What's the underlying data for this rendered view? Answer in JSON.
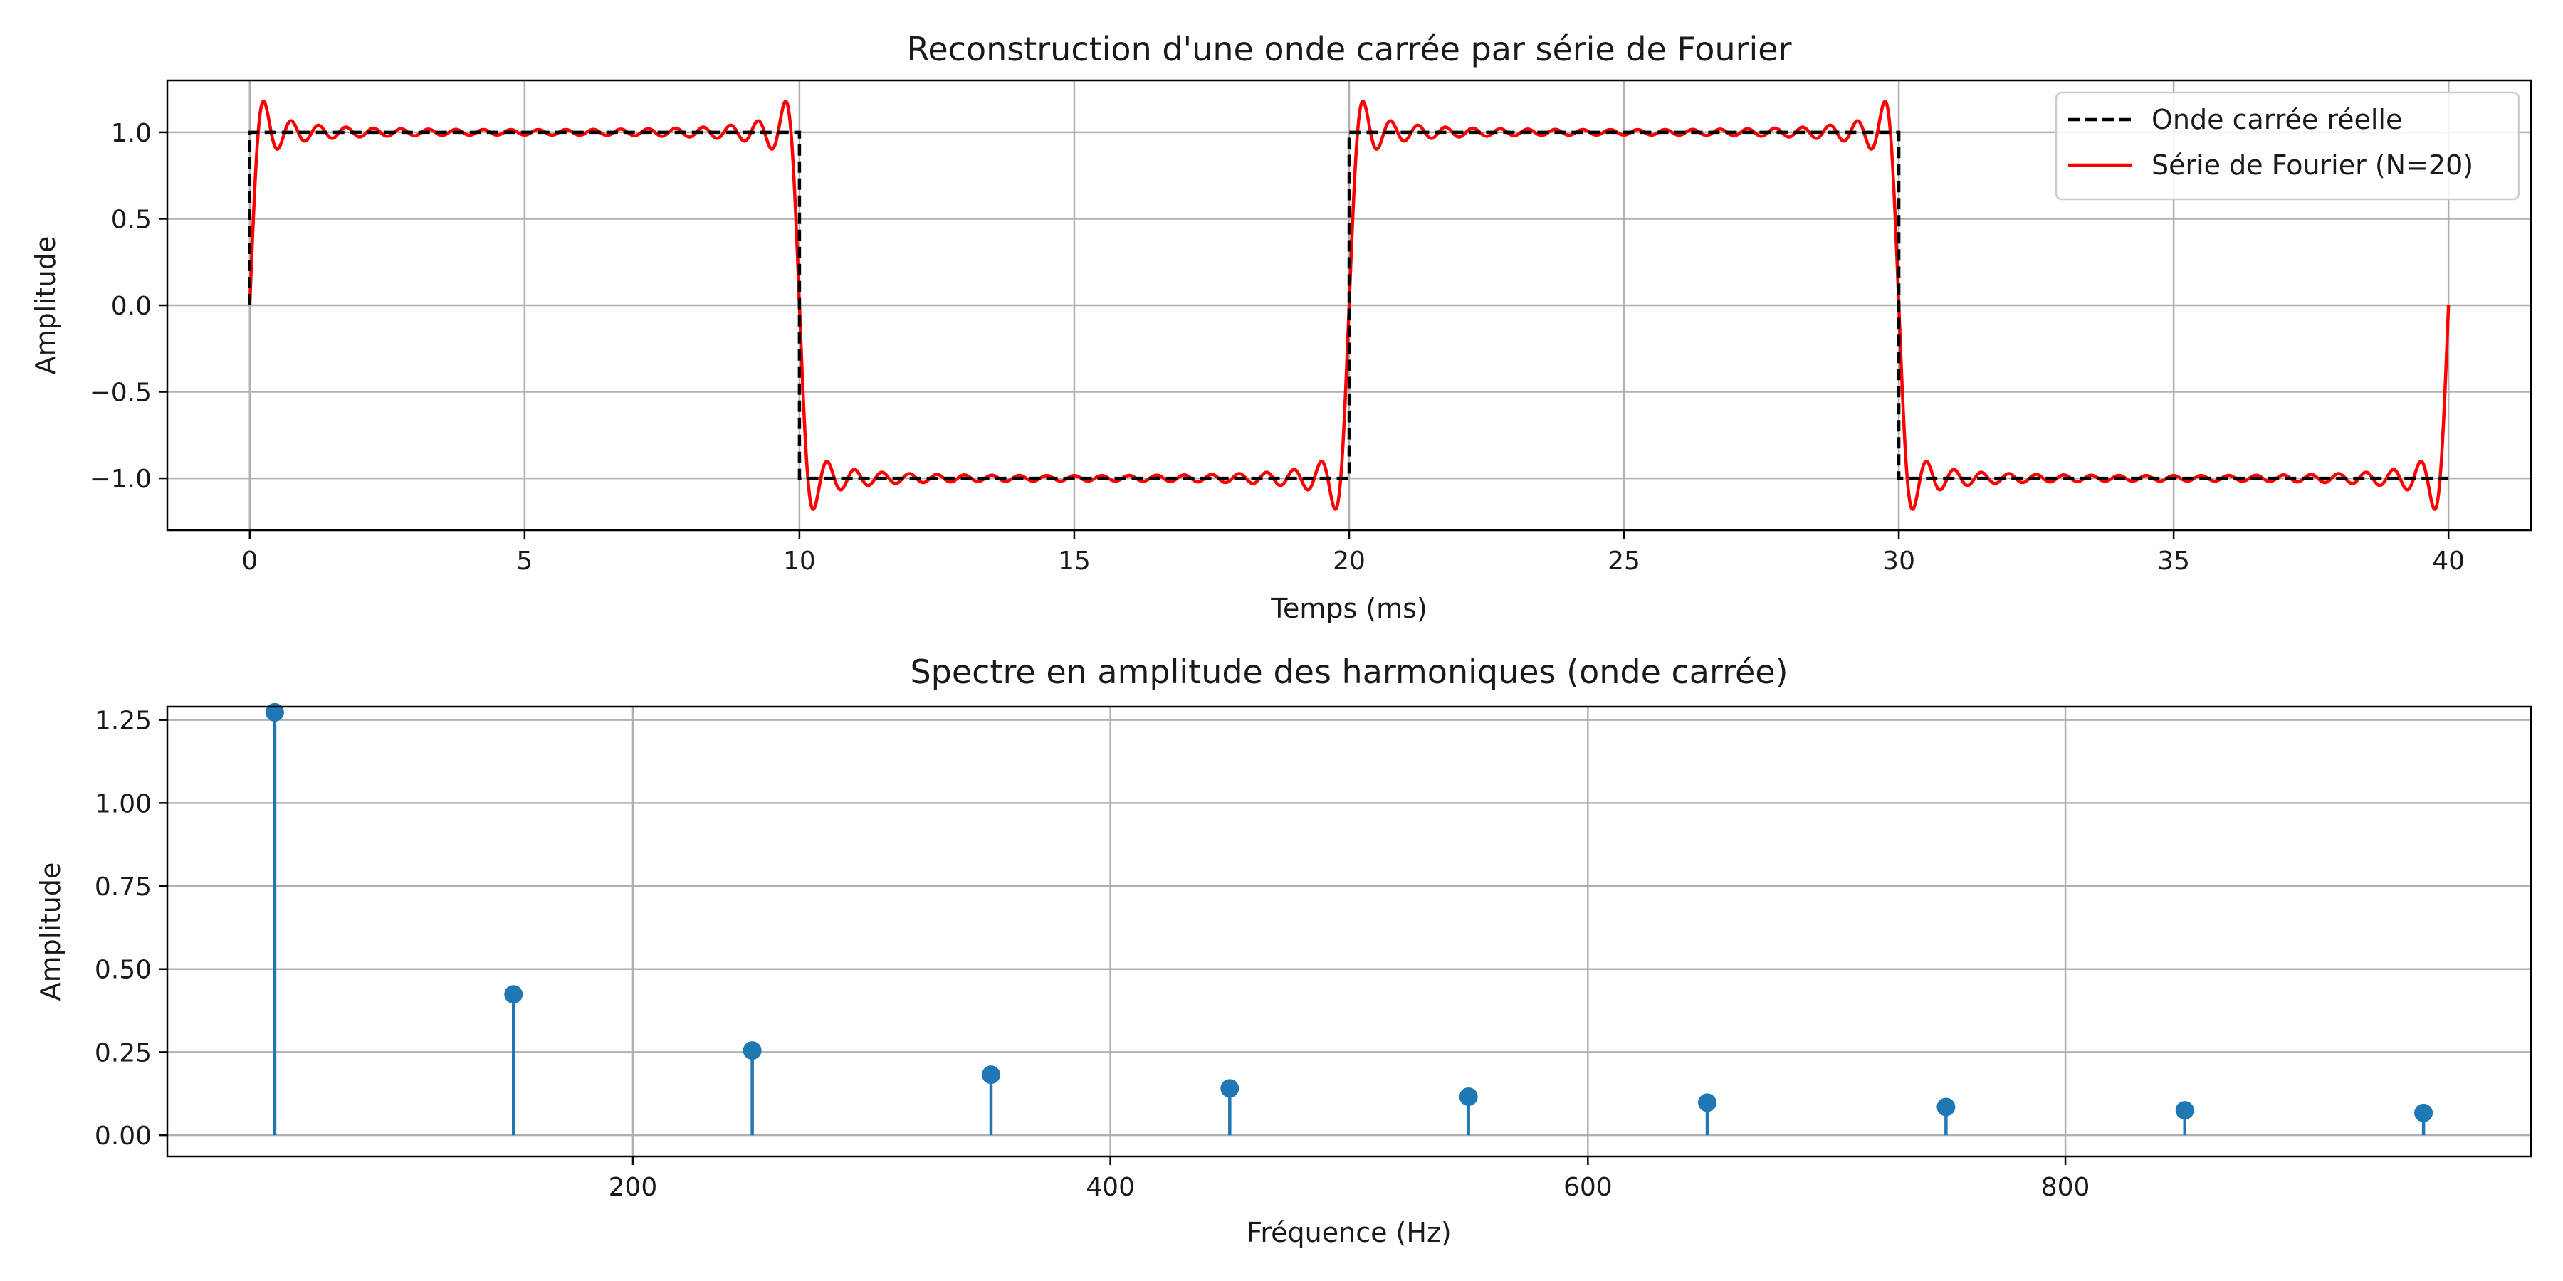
{
  "chart_data": [
    {
      "type": "line",
      "title": "Reconstruction d'une onde carrée par série de Fourier",
      "xlabel": "Temps (ms)",
      "ylabel": "Amplitude",
      "xlim": [
        -1.5,
        41.5
      ],
      "ylim": [
        -1.3,
        1.3
      ],
      "xticks": [
        0,
        5,
        10,
        15,
        20,
        25,
        30,
        35,
        40
      ],
      "yticks": [
        -1.0,
        -0.5,
        0.0,
        0.5,
        1.0
      ],
      "xtick_labels": [
        "0",
        "5",
        "10",
        "15",
        "20",
        "25",
        "30",
        "35",
        "40"
      ],
      "ytick_labels": [
        "−1.0",
        "−0.5",
        "0.0",
        "0.5",
        "1.0"
      ],
      "grid": true,
      "legend_position": "top-right",
      "period_ms": 20,
      "harmonics_N": 20,
      "series": [
        {
          "name": "Onde carrée réelle",
          "color": "#000000",
          "style": "dashed",
          "x": [
            0,
            0,
            10,
            10,
            20,
            20,
            30,
            30,
            40
          ],
          "y": [
            0,
            1,
            1,
            -1,
            -1,
            1,
            1,
            -1,
            -1
          ]
        },
        {
          "name": "Série de Fourier (N=20)",
          "color": "#ff0000",
          "style": "solid",
          "x_range": [
            0,
            40
          ]
        }
      ]
    },
    {
      "type": "stem",
      "title": "Spectre en amplitude des harmoniques (onde carrée)",
      "xlabel": "Fréquence (Hz)",
      "ylabel": "Amplitude",
      "xlim": [
        5,
        995
      ],
      "ylim": [
        -0.064,
        1.29
      ],
      "xticks": [
        200,
        400,
        600,
        800
      ],
      "yticks": [
        0.0,
        0.25,
        0.5,
        0.75,
        1.0,
        1.25
      ],
      "xtick_labels": [
        "200",
        "400",
        "600",
        "800"
      ],
      "ytick_labels": [
        "0.00",
        "0.25",
        "0.50",
        "0.75",
        "1.00",
        "1.25"
      ],
      "grid": true,
      "color": "#1f77b4",
      "x": [
        50,
        150,
        250,
        350,
        450,
        550,
        650,
        750,
        850,
        950
      ],
      "values": [
        1.273,
        0.424,
        0.255,
        0.182,
        0.141,
        0.116,
        0.098,
        0.085,
        0.075,
        0.067
      ]
    }
  ]
}
